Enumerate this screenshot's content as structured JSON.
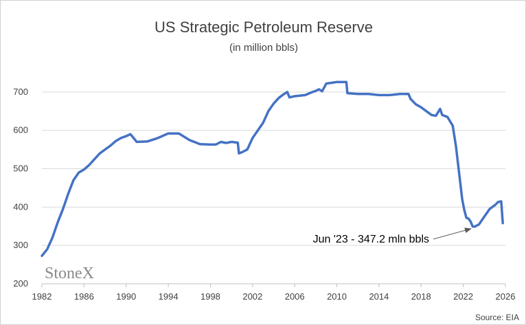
{
  "chart_data": {
    "type": "line",
    "title": "US Strategic Petroleum Reserve",
    "subtitle": "(in million bbls)",
    "xlabel": "",
    "ylabel": "",
    "xlim": [
      1982,
      2026
    ],
    "ylim": [
      200,
      750
    ],
    "x_ticks": [
      1982,
      1986,
      1990,
      1994,
      1998,
      2002,
      2006,
      2010,
      2014,
      2018,
      2022,
      2026
    ],
    "y_ticks": [
      200,
      300,
      400,
      500,
      600,
      700
    ],
    "grid": "horizontal",
    "legend": "none",
    "series": [
      {
        "color": "#4472C4",
        "x": [
          1982.0,
          1982.5,
          1983.0,
          1983.5,
          1984.0,
          1984.5,
          1985.0,
          1985.5,
          1986.0,
          1986.5,
          1987.0,
          1987.5,
          1988.0,
          1988.5,
          1989.0,
          1989.5,
          1990.0,
          1990.4,
          1990.5,
          1991.0,
          1992.0,
          1993.0,
          1994.0,
          1995.0,
          1996.0,
          1997.0,
          1998.0,
          1998.5,
          1999.0,
          1999.5,
          2000.0,
          2000.6,
          2000.7,
          2001.0,
          2001.5,
          2002.0,
          2002.5,
          2003.0,
          2003.5,
          2004.0,
          2004.5,
          2005.0,
          2005.3,
          2005.5,
          2006.0,
          2007.0,
          2007.5,
          2008.0,
          2008.3,
          2008.6,
          2009.0,
          2010.0,
          2010.9,
          2011.0,
          2012.0,
          2013.0,
          2014.0,
          2015.0,
          2016.0,
          2016.8,
          2017.0,
          2017.5,
          2018.0,
          2018.5,
          2019.0,
          2019.4,
          2019.8,
          2020.0,
          2020.5,
          2021.0,
          2021.3,
          2021.6,
          2021.9,
          2022.1,
          2022.3,
          2022.5,
          2022.7,
          2022.9,
          2023.1,
          2023.5,
          2024.0,
          2024.5,
          2025.0,
          2025.3,
          2025.6,
          2025.75
        ],
        "y": [
          273,
          290,
          320,
          360,
          395,
          435,
          470,
          490,
          498,
          510,
          525,
          540,
          550,
          560,
          572,
          580,
          585,
          590,
          587,
          570,
          571,
          580,
          592,
          592,
          575,
          564,
          563,
          563,
          570,
          567,
          570,
          568,
          540,
          543,
          550,
          580,
          600,
          620,
          650,
          670,
          685,
          695,
          700,
          686,
          689,
          692,
          698,
          703,
          707,
          702,
          722,
          726,
          726,
          697,
          695,
          695,
          692,
          692,
          695,
          695,
          682,
          668,
          660,
          650,
          640,
          638,
          656,
          640,
          635,
          612,
          560,
          490,
          420,
          392,
          372,
          370,
          362,
          349,
          349,
          355,
          375,
          395,
          405,
          413,
          415,
          358
        ]
      }
    ],
    "annotation": {
      "text": "Jun '23 - 347.2 mln bbls",
      "x": 2023.0,
      "y": 347.2
    },
    "source": "Source: EIA",
    "logo": "StoneX"
  }
}
